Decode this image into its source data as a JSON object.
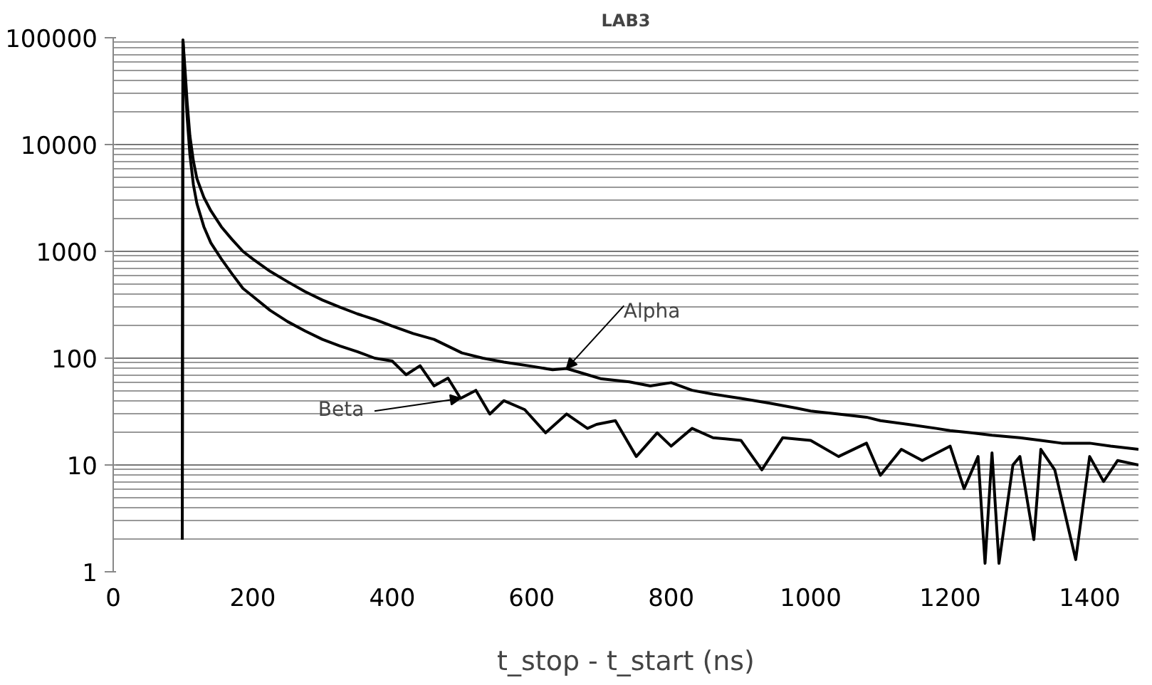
{
  "chart_data": {
    "type": "line",
    "title": "LAB3",
    "xlabel": "t_stop - t_start (ns)",
    "log": "y",
    "grid": "y",
    "marker": "none",
    "line_style": "solid",
    "xlim": [
      0,
      1470
    ],
    "ylim": [
      1,
      100000
    ],
    "xticks": [
      0,
      200,
      400,
      600,
      800,
      1000,
      1200,
      1400
    ],
    "yticks": [
      1,
      10,
      100,
      1000,
      10000,
      100000
    ],
    "annotations": [
      {
        "text": "Alpha",
        "x": 650,
        "y": 80
      },
      {
        "text": "Beta",
        "x": 498,
        "y": 42
      }
    ],
    "series": [
      {
        "color": "#000000",
        "x": [
          99,
          100,
          103,
          106,
          110,
          115,
          120,
          130,
          140,
          155,
          170,
          186,
          200,
          225,
          250,
          275,
          300,
          325,
          350,
          375,
          400,
          430,
          460,
          500,
          530,
          560,
          600,
          630,
          650,
          680,
          700,
          740,
          770,
          800,
          830,
          860,
          900,
          940,
          980,
          1000,
          1040,
          1080,
          1100,
          1140,
          1180,
          1200,
          1230,
          1260,
          1300,
          1330,
          1360,
          1400,
          1430,
          1470
        ],
        "values": [
          2,
          95000,
          50000,
          25000,
          12000,
          7000,
          4800,
          3200,
          2400,
          1700,
          1300,
          1000,
          850,
          650,
          520,
          420,
          350,
          300,
          260,
          230,
          200,
          170,
          150,
          112,
          100,
          92,
          84,
          78,
          80,
          70,
          64,
          60,
          55,
          59,
          50,
          46,
          42,
          38,
          34,
          32,
          30,
          28,
          26,
          24,
          22,
          21,
          20,
          19,
          18,
          17,
          16,
          16,
          15,
          14
        ]
      },
      {
        "color": "#000000",
        "x": [
          99,
          100,
          103,
          106,
          110,
          115,
          120,
          130,
          140,
          155,
          170,
          186,
          200,
          225,
          250,
          275,
          300,
          325,
          350,
          375,
          400,
          420,
          440,
          460,
          480,
          498,
          520,
          540,
          560,
          590,
          620,
          650,
          680,
          693,
          720,
          750,
          780,
          800,
          830,
          860,
          900,
          930,
          960,
          1000,
          1040,
          1080,
          1100,
          1130,
          1160,
          1200,
          1220,
          1240,
          1250,
          1260,
          1270,
          1290,
          1300,
          1320,
          1330,
          1350,
          1380,
          1400,
          1420,
          1440,
          1470
        ],
        "values": [
          2,
          95000,
          40000,
          18000,
          8000,
          4200,
          2800,
          1700,
          1200,
          850,
          620,
          450,
          380,
          280,
          220,
          180,
          150,
          130,
          115,
          100,
          94,
          70,
          85,
          55,
          65,
          42,
          50,
          30,
          40,
          33,
          20,
          30,
          22,
          24,
          26,
          12,
          20,
          15,
          22,
          18,
          17,
          9,
          18,
          17,
          12,
          16,
          8,
          14,
          11,
          15,
          6,
          12,
          1.2,
          13,
          1.2,
          10,
          12,
          2,
          14,
          9,
          1.3,
          12,
          7,
          11,
          10
        ]
      }
    ]
  }
}
